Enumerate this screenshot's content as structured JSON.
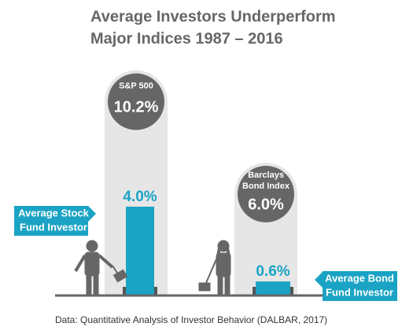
{
  "chart_data": {
    "type": "bar",
    "title": [
      "Average Investors Underperform",
      "Major Indices 1987 – 2016"
    ],
    "indices": {
      "names": [
        [
          "S&P 500"
        ],
        [
          "Barclays",
          "Bond Index"
        ]
      ],
      "values": [
        10.2,
        6.0
      ],
      "value_labels": [
        "10.2%",
        "6.0%"
      ],
      "color": "#e6e6e6",
      "circle_color": "#666666"
    },
    "investors": {
      "names": [
        [
          "Average Stock",
          "Fund Investor"
        ],
        [
          "Average Bond",
          "Fund Investor"
        ]
      ],
      "values": [
        4.0,
        0.6
      ],
      "value_labels": [
        "4.0%",
        "0.6%"
      ],
      "color": "#1aa3c4"
    },
    "source": "Data: Quantitative Analysis of Investor Behavior (DALBAR, 2017)"
  }
}
